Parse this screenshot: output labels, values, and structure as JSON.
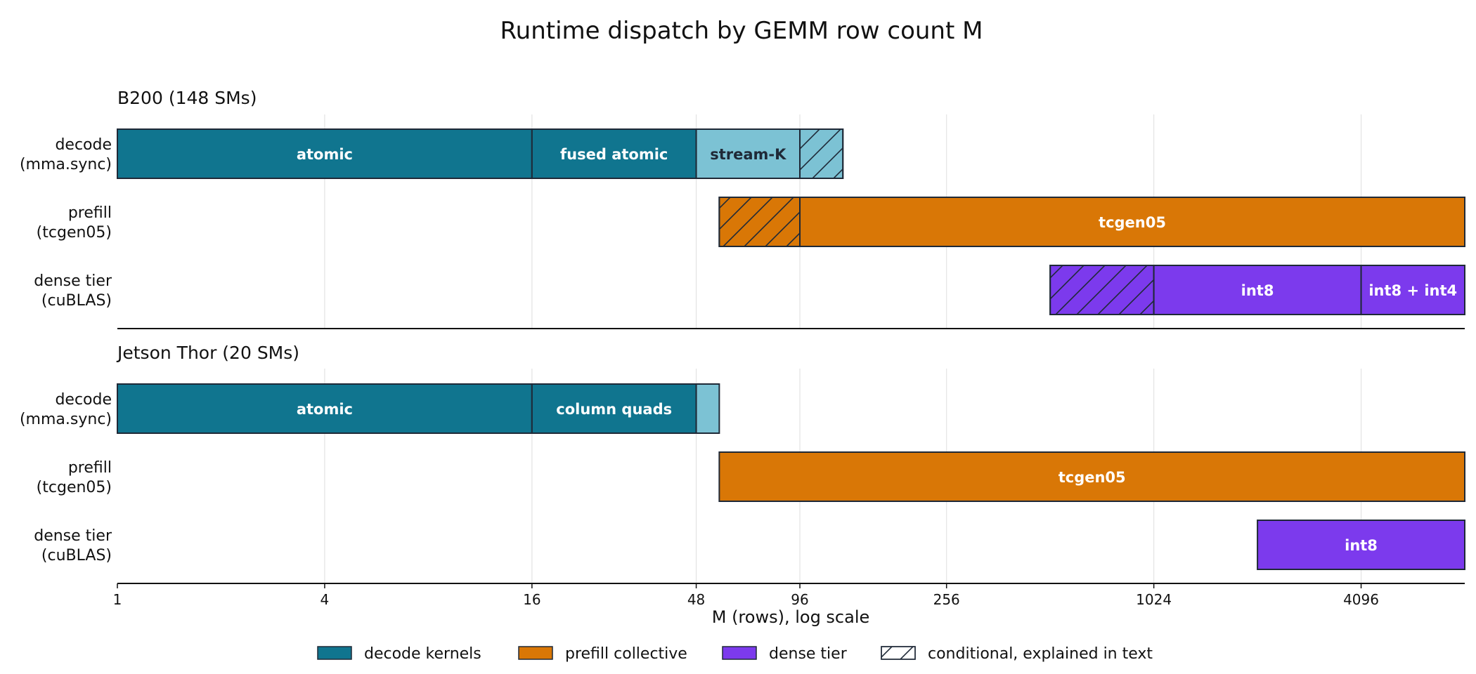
{
  "chart_data": {
    "type": "bar",
    "title": "Runtime dispatch by GEMM row count M",
    "xlabel": "M (rows), log scale",
    "x_scale": "log2",
    "xlim": [
      1,
      8192
    ],
    "xticks": [
      1,
      4,
      16,
      48,
      96,
      256,
      1024,
      4096
    ],
    "xtick_labels": [
      "1",
      "4",
      "16",
      "48",
      "96",
      "256",
      "1024",
      "4096"
    ],
    "grid": true,
    "legend_placement": "bottom-center",
    "colors": {
      "decode": "#10758f",
      "decode_light": "#7cc2d4",
      "prefill": "#d97706",
      "dense": "#7c3aed",
      "edge": "#1f2937"
    },
    "legend": [
      {
        "label": "decode kernels",
        "color": "#10758f",
        "hatch": false
      },
      {
        "label": "prefill collective",
        "color": "#d97706",
        "hatch": false
      },
      {
        "label": "dense tier",
        "color": "#7c3aed",
        "hatch": false
      },
      {
        "label": "conditional, explained in text",
        "color": "#ffffff",
        "hatch": true
      }
    ],
    "panels": [
      {
        "title": "B200 (148 SMs)",
        "rows": [
          {
            "label": [
              "decode",
              "(mma.sync)"
            ],
            "segments": [
              {
                "start": 1,
                "end": 16,
                "label": "atomic",
                "color": "#10758f",
                "text_color": "#ffffff",
                "hatch": false
              },
              {
                "start": 16,
                "end": 48,
                "label": "fused atomic",
                "color": "#10758f",
                "text_color": "#ffffff",
                "hatch": false
              },
              {
                "start": 48,
                "end": 96,
                "label": "stream-K",
                "color": "#7cc2d4",
                "text_color": "#1f2937",
                "hatch": false
              },
              {
                "start": 96,
                "end": 128,
                "label": "",
                "color": "#7cc2d4",
                "text_color": "#1f2937",
                "hatch": true
              }
            ]
          },
          {
            "label": [
              "prefill",
              "(tcgen05)"
            ],
            "segments": [
              {
                "start": 56,
                "end": 96,
                "label": "",
                "color": "#d97706",
                "text_color": "#ffffff",
                "hatch": true
              },
              {
                "start": 96,
                "end": 8192,
                "label": "tcgen05",
                "color": "#d97706",
                "text_color": "#ffffff",
                "hatch": false
              }
            ]
          },
          {
            "label": [
              "dense tier",
              "(cuBLAS)"
            ],
            "segments": [
              {
                "start": 512,
                "end": 1024,
                "label": "",
                "color": "#7c3aed",
                "text_color": "#ffffff",
                "hatch": true
              },
              {
                "start": 1024,
                "end": 4096,
                "label": "int8",
                "color": "#7c3aed",
                "text_color": "#ffffff",
                "hatch": false
              },
              {
                "start": 4096,
                "end": 8192,
                "label": "int8 + int4",
                "color": "#7c3aed",
                "text_color": "#ffffff",
                "hatch": false
              }
            ]
          }
        ]
      },
      {
        "title": "Jetson Thor (20 SMs)",
        "rows": [
          {
            "label": [
              "decode",
              "(mma.sync)"
            ],
            "segments": [
              {
                "start": 1,
                "end": 16,
                "label": "atomic",
                "color": "#10758f",
                "text_color": "#ffffff",
                "hatch": false
              },
              {
                "start": 16,
                "end": 48,
                "label": "column quads",
                "color": "#10758f",
                "text_color": "#ffffff",
                "hatch": false
              },
              {
                "start": 48,
                "end": 56,
                "label": "",
                "color": "#7cc2d4",
                "text_color": "#1f2937",
                "hatch": false
              }
            ]
          },
          {
            "label": [
              "prefill",
              "(tcgen05)"
            ],
            "segments": [
              {
                "start": 56,
                "end": 8192,
                "label": "tcgen05",
                "color": "#d97706",
                "text_color": "#ffffff",
                "hatch": false
              }
            ]
          },
          {
            "label": [
              "dense tier",
              "(cuBLAS)"
            ],
            "segments": [
              {
                "start": 2048,
                "end": 8192,
                "label": "int8",
                "color": "#7c3aed",
                "text_color": "#ffffff",
                "hatch": false
              }
            ]
          }
        ]
      }
    ]
  }
}
